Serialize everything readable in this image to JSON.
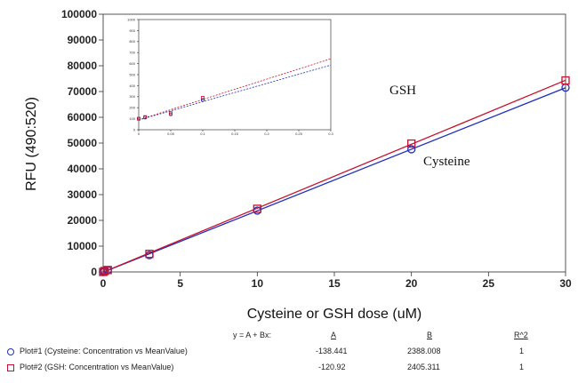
{
  "chart_data": [
    {
      "type": "scatter",
      "title": "",
      "xlabel": "Cysteine or GSH dose (uM)",
      "ylabel": "RFU (490:520)",
      "xlim": [
        0,
        30
      ],
      "ylim": [
        0,
        100000
      ],
      "x_ticks": [
        "0",
        "5",
        "10",
        "15",
        "20",
        "25",
        "30"
      ],
      "y_ticks": [
        "0",
        "10000",
        "20000",
        "30000",
        "40000",
        "50000",
        "60000",
        "70000",
        "80000",
        "90000",
        "100000"
      ],
      "grid": false,
      "series": [
        {
          "name": "Cysteine",
          "marker": "circle",
          "color": "#1f2fbf",
          "x": [
            0,
            0.1,
            0.3,
            3,
            10,
            20,
            30
          ],
          "y": [
            0,
            300,
            700,
            6500,
            23800,
            47600,
            71500
          ],
          "fit": {
            "A": -138.441,
            "B": 2388.008
          }
        },
        {
          "name": "GSH",
          "marker": "square",
          "color": "#c8102e",
          "x": [
            0,
            0.1,
            0.3,
            3,
            10,
            20,
            30
          ],
          "y": [
            0,
            350,
            750,
            7000,
            24500,
            49800,
            74300
          ],
          "fit": {
            "A": -120.92,
            "B": 2405.311
          }
        }
      ],
      "annotations": [
        "GSH",
        "Cysteine"
      ]
    },
    {
      "type": "scatter",
      "title": "",
      "xlabel": "",
      "ylabel": "",
      "xlim": [
        0,
        0.3
      ],
      "ylim": [
        0,
        1000
      ],
      "x_ticks": [
        "0",
        "0.05",
        "0.1",
        "0.15",
        "0.2",
        "0.25",
        "0.3"
      ],
      "y_ticks": [
        "0",
        "100",
        "200",
        "300",
        "400",
        "500",
        "600",
        "700",
        "800",
        "900",
        "1000"
      ],
      "grid": false,
      "series": [
        {
          "name": "Cysteine",
          "marker": "circle",
          "color": "#1f2fbf",
          "x": [
            0,
            0.01,
            0.05,
            0.1
          ],
          "y": [
            100,
            110,
            140,
            270
          ]
        },
        {
          "name": "GSH",
          "marker": "square",
          "color": "#c8102e",
          "x": [
            0,
            0.01,
            0.05,
            0.1
          ],
          "y": [
            100,
            115,
            150,
            290
          ]
        }
      ]
    }
  ],
  "fit_table": {
    "equation": "y = A + Bx:",
    "col_a": "A",
    "col_b": "B",
    "col_r2": "R^2",
    "rows": [
      {
        "label": "Plot#1 (Cysteine: Concentration vs MeanValue)",
        "a": "-138.441",
        "b": "2388.008",
        "r2": "1"
      },
      {
        "label": "Plot#2 (GSH: Concentration vs MeanValue)",
        "a": "-120.92",
        "b": "2405.311",
        "r2": "1"
      }
    ]
  }
}
